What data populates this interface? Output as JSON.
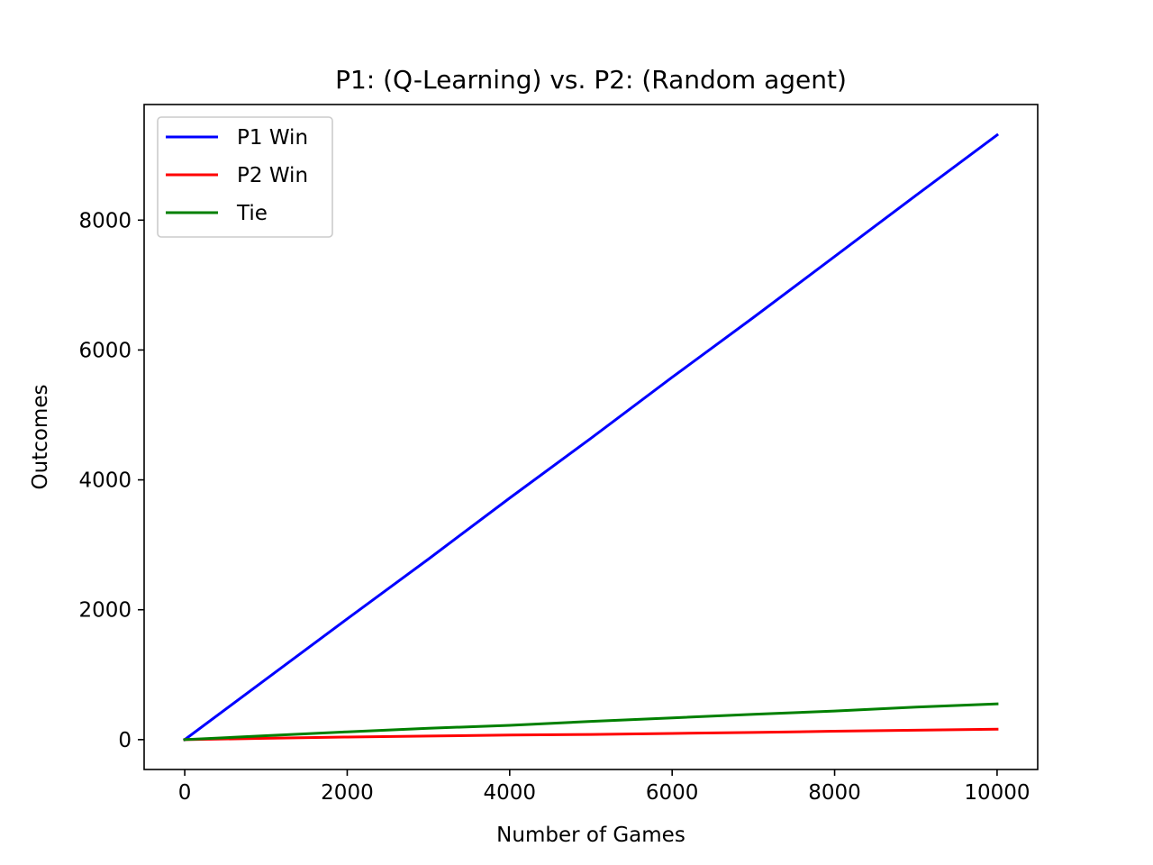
{
  "chart_data": {
    "type": "line",
    "title": "P1: (Q-Learning) vs. P2: (Random agent)",
    "xlabel": "Number of Games",
    "ylabel": "Outcomes",
    "xlim": [
      -500,
      10500
    ],
    "ylim": [
      -460,
      9780
    ],
    "xticks": [
      0,
      2000,
      4000,
      6000,
      8000,
      10000
    ],
    "xtick_labels": [
      "0",
      "2000",
      "4000",
      "6000",
      "8000",
      "10000"
    ],
    "yticks": [
      0,
      2000,
      4000,
      6000,
      8000
    ],
    "ytick_labels": [
      "0",
      "2000",
      "4000",
      "6000",
      "8000"
    ],
    "grid": false,
    "legend_position": "top-left",
    "series": [
      {
        "name": "P1 Win",
        "color": "#0000ff",
        "x": [
          0,
          1000,
          2000,
          3000,
          4000,
          5000,
          6000,
          7000,
          8000,
          9000,
          10000
        ],
        "y": [
          0,
          930,
          1860,
          2780,
          3720,
          4640,
          5580,
          6500,
          7440,
          8380,
          9310
        ]
      },
      {
        "name": "P2 Win",
        "color": "#ff0000",
        "x": [
          0,
          1000,
          2000,
          3000,
          4000,
          5000,
          6000,
          7000,
          8000,
          9000,
          10000
        ],
        "y": [
          0,
          20,
          40,
          55,
          70,
          80,
          95,
          110,
          130,
          145,
          160
        ]
      },
      {
        "name": "Tie",
        "color": "#008000",
        "x": [
          0,
          1000,
          2000,
          3000,
          4000,
          5000,
          6000,
          7000,
          8000,
          9000,
          10000
        ],
        "y": [
          0,
          60,
          120,
          175,
          220,
          280,
          335,
          390,
          440,
          500,
          550
        ]
      }
    ]
  }
}
